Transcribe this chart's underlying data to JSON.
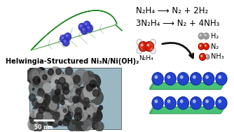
{
  "background_color": "#ffffff",
  "leaf_color": "#33aa33",
  "leaf_edge_color": "#228822",
  "leaf_vein_color": "#228822",
  "nanoparticle_color": "#3333bb",
  "nanoparticle_highlight": "#7777ee",
  "title_text": "Helwingia-Structured Ni₃N/Ni(OH)₂",
  "equation1": "N₂H₄ ⟶ N₂ + 2H₂",
  "equation2": "3N₂H₄ ⟶ N₂ + 4NH₃",
  "label_h2": "H₂",
  "label_n2": "N₂",
  "label_nh3": "NH₃",
  "label_n2h4": "N₂H₄",
  "scale_bar_text": "50 nm",
  "tem_bg_color": "#9ab8c4",
  "crystal_green": "#33bb66",
  "crystal_green_edge": "#228844",
  "crystal_blue": "#2244cc",
  "crystal_blue_highlight": "#5577ff",
  "arrow_color": "#111111",
  "eq_fontsize": 8.5,
  "title_fontsize": 7.0,
  "mol_red": "#dd2200",
  "mol_red_edge": "#880000",
  "mol_gray": "#999999",
  "mol_lgray": "#cccccc",
  "mol_white": "#eeeeee"
}
